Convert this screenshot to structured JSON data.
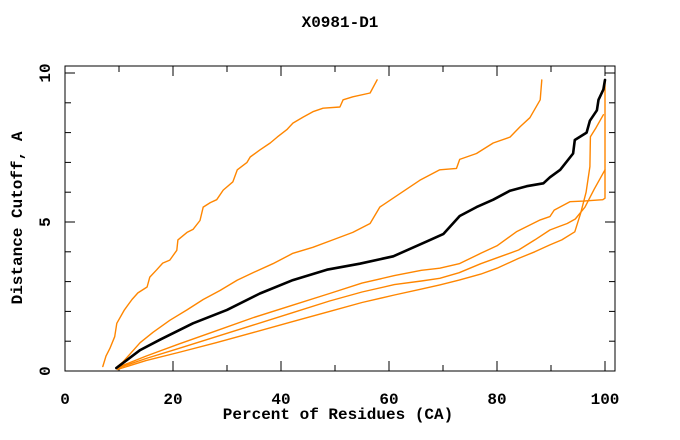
{
  "title": "X0981-D1",
  "plot": {
    "background": "#ffffff",
    "frame_color": "#000000"
  },
  "axes": {
    "x": {
      "label": "Percent of Residues (CA)",
      "major_ticks": [
        0,
        20,
        40,
        60,
        80,
        100
      ],
      "minor_ticks": [
        10,
        30,
        50,
        70,
        90
      ],
      "range": [
        0,
        100
      ]
    },
    "y": {
      "label": "Distance Cutoff, A",
      "major_ticks": [
        0,
        5,
        10
      ],
      "minor_ticks": [
        1,
        2,
        3,
        4,
        6,
        7,
        8,
        9
      ],
      "range": [
        0,
        10
      ]
    }
  },
  "colors": {
    "curve_orange": "#ff8600",
    "curve_black": "#000000"
  },
  "chart_data": {
    "type": "line",
    "title": "X0981-D1",
    "xlabel": "Percent of Residues (CA)",
    "ylabel": "Distance Cutoff, A",
    "xlim": [
      0,
      100
    ],
    "ylim": [
      0,
      10
    ],
    "grid": false,
    "legend": "none",
    "series": [
      {
        "name": "orange-1",
        "color": "#ff8600",
        "width": 1.4,
        "points": [
          [
            7,
            0.15
          ],
          [
            7.6,
            0.5
          ],
          [
            8.3,
            0.75
          ],
          [
            9.2,
            1.15
          ],
          [
            9.6,
            1.6
          ],
          [
            11,
            2.05
          ],
          [
            12.4,
            2.4
          ],
          [
            13.5,
            2.62
          ],
          [
            15.2,
            2.82
          ],
          [
            15.7,
            3.15
          ],
          [
            17,
            3.4
          ],
          [
            18.1,
            3.62
          ],
          [
            19.4,
            3.72
          ],
          [
            20.7,
            4.05
          ],
          [
            20.9,
            4.4
          ],
          [
            22.6,
            4.65
          ],
          [
            23.7,
            4.75
          ],
          [
            25,
            5.05
          ],
          [
            25.6,
            5.5
          ],
          [
            26.9,
            5.65
          ],
          [
            28.1,
            5.75
          ],
          [
            29.3,
            6.07
          ],
          [
            31.1,
            6.35
          ],
          [
            31.9,
            6.75
          ],
          [
            33.7,
            7.0
          ],
          [
            34.3,
            7.18
          ],
          [
            36.1,
            7.42
          ],
          [
            38,
            7.65
          ],
          [
            39.3,
            7.85
          ],
          [
            41.1,
            8.1
          ],
          [
            42.2,
            8.32
          ],
          [
            44.1,
            8.52
          ],
          [
            45.9,
            8.7
          ],
          [
            47.8,
            8.82
          ],
          [
            50.9,
            8.86
          ],
          [
            51.5,
            9.1
          ],
          [
            53.3,
            9.2
          ],
          [
            56.5,
            9.33
          ],
          [
            57.8,
            9.77
          ]
        ]
      },
      {
        "name": "orange-2",
        "color": "#ff8600",
        "width": 1.4,
        "points": [
          [
            9.7,
            0.15
          ],
          [
            10.7,
            0.3
          ],
          [
            13.9,
            0.95
          ],
          [
            16.3,
            1.3
          ],
          [
            19.4,
            1.7
          ],
          [
            22.6,
            2.05
          ],
          [
            25.6,
            2.4
          ],
          [
            28.7,
            2.7
          ],
          [
            31.9,
            3.05
          ],
          [
            34.8,
            3.3
          ],
          [
            38.5,
            3.6
          ],
          [
            42.2,
            3.95
          ],
          [
            45.9,
            4.15
          ],
          [
            49.6,
            4.4
          ],
          [
            53.3,
            4.65
          ],
          [
            56.5,
            4.95
          ],
          [
            58.3,
            5.5
          ],
          [
            62,
            5.95
          ],
          [
            65.7,
            6.4
          ],
          [
            69.4,
            6.75
          ],
          [
            72.5,
            6.8
          ],
          [
            73.1,
            7.1
          ],
          [
            76.2,
            7.3
          ],
          [
            79.3,
            7.65
          ],
          [
            82.4,
            7.85
          ],
          [
            84.3,
            8.2
          ],
          [
            86.1,
            8.5
          ],
          [
            88,
            9.1
          ],
          [
            88.3,
            9.77
          ]
        ]
      },
      {
        "name": "orange-3",
        "color": "#ff8600",
        "width": 1.4,
        "points": [
          [
            9.5,
            0.1
          ],
          [
            15,
            0.5
          ],
          [
            21,
            0.9
          ],
          [
            28,
            1.35
          ],
          [
            35,
            1.8
          ],
          [
            42,
            2.2
          ],
          [
            49,
            2.6
          ],
          [
            55,
            2.95
          ],
          [
            61,
            3.2
          ],
          [
            66,
            3.38
          ],
          [
            69.4,
            3.45
          ],
          [
            73,
            3.6
          ],
          [
            77,
            3.95
          ],
          [
            80,
            4.2
          ],
          [
            83.6,
            4.67
          ],
          [
            88,
            5.07
          ],
          [
            89.8,
            5.18
          ],
          [
            90.6,
            5.4
          ],
          [
            93.5,
            5.68
          ],
          [
            96,
            5.7
          ],
          [
            99.6,
            5.75
          ],
          [
            100,
            5.8
          ],
          [
            100,
            9.77
          ]
        ]
      },
      {
        "name": "orange-4",
        "color": "#ff8600",
        "width": 1.4,
        "points": [
          [
            9.5,
            0.08
          ],
          [
            15,
            0.42
          ],
          [
            21,
            0.75
          ],
          [
            28,
            1.15
          ],
          [
            35,
            1.55
          ],
          [
            42,
            1.95
          ],
          [
            49,
            2.35
          ],
          [
            55,
            2.65
          ],
          [
            61,
            2.9
          ],
          [
            66,
            3.02
          ],
          [
            69.4,
            3.11
          ],
          [
            73,
            3.3
          ],
          [
            77,
            3.6
          ],
          [
            80,
            3.8
          ],
          [
            84,
            4.06
          ],
          [
            87,
            4.4
          ],
          [
            89.8,
            4.73
          ],
          [
            91.5,
            4.85
          ],
          [
            93,
            4.95
          ],
          [
            94.5,
            5.1
          ],
          [
            96.3,
            5.5
          ],
          [
            98,
            6.1
          ],
          [
            100,
            6.75
          ]
        ]
      },
      {
        "name": "orange-5",
        "color": "#ff8600",
        "width": 1.4,
        "points": [
          [
            9.7,
            0.05
          ],
          [
            15,
            0.35
          ],
          [
            21,
            0.62
          ],
          [
            28,
            0.95
          ],
          [
            35,
            1.3
          ],
          [
            42,
            1.65
          ],
          [
            49,
            2.0
          ],
          [
            55,
            2.3
          ],
          [
            61,
            2.55
          ],
          [
            66,
            2.75
          ],
          [
            69.4,
            2.89
          ],
          [
            73,
            3.05
          ],
          [
            77,
            3.25
          ],
          [
            80,
            3.45
          ],
          [
            84,
            3.78
          ],
          [
            87,
            4.0
          ],
          [
            89.8,
            4.23
          ],
          [
            92,
            4.4
          ],
          [
            94.4,
            4.67
          ],
          [
            95.5,
            5.3
          ],
          [
            96.5,
            6.0
          ],
          [
            97.2,
            6.86
          ],
          [
            97.3,
            7.86
          ],
          [
            98.3,
            8.15
          ],
          [
            99.7,
            8.6
          ]
        ]
      },
      {
        "name": "black-main",
        "color": "#000000",
        "width": 2.6,
        "points": [
          [
            9.5,
            0.1
          ],
          [
            13.9,
            0.7
          ],
          [
            17.6,
            1.05
          ],
          [
            23.7,
            1.6
          ],
          [
            30,
            2.05
          ],
          [
            36.1,
            2.6
          ],
          [
            42.2,
            3.05
          ],
          [
            48.5,
            3.4
          ],
          [
            54.6,
            3.6
          ],
          [
            60.8,
            3.85
          ],
          [
            67,
            4.35
          ],
          [
            70.1,
            4.6
          ],
          [
            73.1,
            5.2
          ],
          [
            76.2,
            5.5
          ],
          [
            79.3,
            5.75
          ],
          [
            82.4,
            6.05
          ],
          [
            85.5,
            6.2
          ],
          [
            88.6,
            6.3
          ],
          [
            89.8,
            6.5
          ],
          [
            91.7,
            6.75
          ],
          [
            94.1,
            7.3
          ],
          [
            94.4,
            7.75
          ],
          [
            96.6,
            8.0
          ],
          [
            97.2,
            8.4
          ],
          [
            98.5,
            8.75
          ],
          [
            98.8,
            9.1
          ],
          [
            99.7,
            9.45
          ],
          [
            100,
            9.77
          ]
        ]
      }
    ]
  }
}
